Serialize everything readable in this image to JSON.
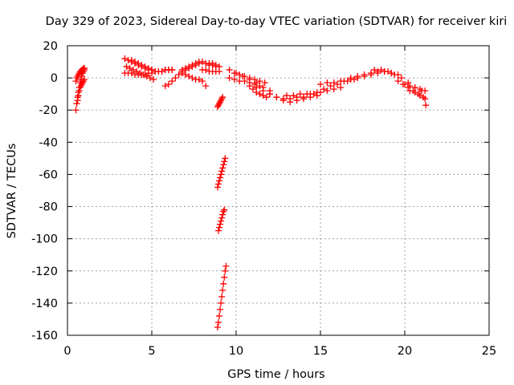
{
  "chart_data": {
    "type": "scatter",
    "title": "Day 329 of 2023, Sidereal Day-to-day VTEC variation (SDTVAR) for receiver kiri",
    "xlabel": "GPS time / hours",
    "ylabel": "SDTVAR / TECUs",
    "xlim": [
      0,
      25
    ],
    "ylim": [
      -160,
      20
    ],
    "xticks": [
      "0",
      "5",
      "10",
      "15",
      "20",
      "25"
    ],
    "yticks": [
      "-160",
      "-140",
      "-120",
      "-100",
      "-80",
      "-60",
      "-40",
      "-20",
      "0",
      "20"
    ],
    "grid": true,
    "marker": "+",
    "color": "#ff0000",
    "series": [
      {
        "name": "s1",
        "x": [
          0.5,
          0.55,
          0.6,
          0.65,
          0.7,
          0.75,
          0.8,
          0.85,
          0.9,
          0.95,
          1.0
        ],
        "y": [
          -20,
          -16,
          -12,
          -9,
          -6,
          -3,
          -1,
          1,
          3,
          4,
          5
        ]
      },
      {
        "name": "s2",
        "x": [
          0.5,
          0.55,
          0.6,
          0.65,
          0.7,
          0.75,
          0.8,
          0.85,
          0.9,
          0.95,
          1.0
        ],
        "y": [
          -2,
          0,
          1,
          2,
          3,
          4,
          4,
          5,
          5,
          6,
          6
        ]
      },
      {
        "name": "s3",
        "x": [
          0.6,
          0.65,
          0.7,
          0.75,
          0.8,
          0.85,
          0.9,
          0.95,
          1.0
        ],
        "y": [
          -14,
          -11,
          -8,
          -6,
          -5,
          -4,
          -3,
          -2,
          -1
        ]
      },
      {
        "name": "s4",
        "x": [
          3.4,
          3.6,
          3.8,
          4.0,
          4.2,
          4.4,
          4.6,
          4.8,
          5.0,
          5.2,
          5.4,
          5.6,
          5.8,
          6.0,
          6.2
        ],
        "y": [
          12,
          11,
          10,
          9,
          8,
          7,
          6,
          5,
          5,
          4,
          4,
          4,
          5,
          5,
          5
        ]
      },
      {
        "name": "s5",
        "x": [
          3.4,
          3.6,
          3.8,
          4.0,
          4.2,
          4.4,
          4.6,
          4.8,
          5.0,
          5.2,
          5.4,
          5.6,
          5.8,
          6.0,
          6.2
        ],
        "y": [
          3,
          3,
          3,
          2,
          2,
          2,
          2,
          3,
          3,
          4,
          4,
          4,
          5,
          5,
          5
        ]
      },
      {
        "name": "s6",
        "x": [
          3.5,
          3.7,
          3.9,
          4.1,
          4.3,
          4.5,
          4.7,
          4.9,
          5.1
        ],
        "y": [
          7,
          6,
          5,
          4,
          3,
          2,
          1,
          0,
          -1
        ]
      },
      {
        "name": "s7",
        "x": [
          3.8,
          4.0,
          4.2,
          4.4,
          4.6,
          4.8,
          5.0
        ],
        "y": [
          11,
          10,
          9,
          8,
          7,
          6,
          5
        ]
      },
      {
        "name": "s8",
        "x": [
          5.8,
          6.0,
          6.2,
          6.4,
          6.6,
          6.8,
          7.0,
          7.2,
          7.4,
          7.6,
          7.8
        ],
        "y": [
          -5,
          -4,
          -2,
          0,
          2,
          4,
          5,
          6,
          7,
          8,
          9
        ]
      },
      {
        "name": "s9",
        "x": [
          6.8,
          7.0,
          7.2,
          7.4,
          7.6,
          7.8,
          8.0,
          8.2,
          8.4,
          8.6,
          8.8,
          9.0
        ],
        "y": [
          5,
          6,
          7,
          8,
          9,
          10,
          10,
          9,
          8,
          8,
          7,
          7
        ]
      },
      {
        "name": "s10",
        "x": [
          6.8,
          7.0,
          7.2,
          7.4,
          7.6,
          7.8,
          8.0
        ],
        "y": [
          3,
          2,
          1,
          0,
          -1,
          -1,
          -2
        ]
      },
      {
        "name": "s11",
        "x": [
          8.0,
          8.2,
          8.4,
          8.6,
          8.8,
          9.0
        ],
        "y": [
          5,
          5,
          4,
          4,
          4,
          4
        ]
      },
      {
        "name": "s12",
        "x": [
          8.4,
          8.6,
          8.8
        ],
        "y": [
          9,
          9,
          8
        ]
      },
      {
        "name": "s13",
        "x": [
          8.2
        ],
        "y": [
          -5
        ]
      },
      {
        "name": "s14",
        "x": [
          8.9,
          8.95,
          9.0,
          9.05,
          9.1,
          9.15,
          9.2
        ],
        "y": [
          -18,
          -17,
          -16,
          -15,
          -14,
          -13,
          -12
        ]
      },
      {
        "name": "s15",
        "x": [
          8.9,
          8.95,
          9.0,
          9.05,
          9.1,
          9.15,
          9.2,
          9.25,
          9.3,
          9.35
        ],
        "y": [
          -68,
          -66,
          -64,
          -62,
          -60,
          -58,
          -56,
          -54,
          -52,
          -50
        ]
      },
      {
        "name": "s16",
        "x": [
          8.95,
          9.0,
          9.05,
          9.1,
          9.15,
          9.2,
          9.25,
          9.3
        ],
        "y": [
          -95,
          -93,
          -91,
          -89,
          -87,
          -85,
          -83,
          -82
        ]
      },
      {
        "name": "s17",
        "x": [
          8.9,
          8.95,
          9.0,
          9.05,
          9.1,
          9.15,
          9.2,
          9.25,
          9.3,
          9.35,
          9.4
        ],
        "y": [
          -155,
          -152,
          -148,
          -144,
          -140,
          -136,
          -132,
          -128,
          -124,
          -120,
          -117
        ]
      },
      {
        "name": "s18",
        "x": [
          9.6,
          9.9,
          10.2,
          10.5,
          10.8,
          11.1,
          11.4,
          11.7
        ],
        "y": [
          5,
          3,
          2,
          1,
          0,
          -1,
          -2,
          -3
        ]
      },
      {
        "name": "s19",
        "x": [
          9.6,
          9.9,
          10.2,
          10.5,
          10.8,
          11.1,
          11.4
        ],
        "y": [
          0,
          -1,
          -2,
          -2,
          -3,
          -4,
          -5
        ]
      },
      {
        "name": "s20",
        "x": [
          10.0,
          10.4,
          10.8,
          11.2,
          11.6,
          12.0
        ],
        "y": [
          3,
          1,
          -1,
          -3,
          -6,
          -8
        ]
      },
      {
        "name": "s21",
        "x": [
          10.8,
          11.0,
          11.2,
          11.4,
          11.6,
          11.8
        ],
        "y": [
          -5,
          -7,
          -9,
          -10,
          -11,
          -12
        ]
      },
      {
        "name": "s22",
        "x": [
          11.2,
          11.6,
          12.0,
          12.4,
          12.8,
          13.2,
          13.6,
          14.0
        ],
        "y": [
          -6,
          -8,
          -10,
          -12,
          -13,
          -13,
          -12,
          -12
        ]
      },
      {
        "name": "s23",
        "x": [
          12.0,
          12.4,
          12.8,
          13.2,
          13.6,
          14.0,
          14.4,
          14.8
        ],
        "y": [
          -10,
          -12,
          -14,
          -15,
          -14,
          -13,
          -12,
          -11
        ]
      },
      {
        "name": "s24",
        "x": [
          13.0,
          13.4,
          13.8,
          14.2,
          14.6,
          15.0,
          15.4,
          15.8,
          16.2
        ],
        "y": [
          -11,
          -11,
          -10,
          -10,
          -10,
          -9,
          -8,
          -7,
          -6
        ]
      },
      {
        "name": "s25",
        "x": [
          14.4,
          14.8,
          15.2,
          15.6,
          16.0,
          16.4,
          16.8,
          17.2
        ],
        "y": [
          -10,
          -9,
          -7,
          -5,
          -4,
          -2,
          -1,
          0
        ]
      },
      {
        "name": "s26",
        "x": [
          15.0,
          15.4,
          15.8,
          16.2,
          16.6,
          17.0
        ],
        "y": [
          -4,
          -3,
          -3,
          -2,
          -2,
          -1
        ]
      },
      {
        "name": "s27",
        "x": [
          16.8,
          17.2,
          17.6,
          18.0,
          18.4,
          18.8,
          19.2,
          19.6
        ],
        "y": [
          0,
          1,
          2,
          3,
          4,
          4,
          3,
          2
        ]
      },
      {
        "name": "s28",
        "x": [
          17.6,
          18.0,
          18.4,
          18.8,
          19.2
        ],
        "y": [
          1,
          2,
          3,
          4,
          3
        ]
      },
      {
        "name": "s29",
        "x": [
          18.2,
          18.6,
          19.0,
          19.4,
          19.8,
          20.2,
          20.6,
          21.0
        ],
        "y": [
          5,
          5,
          4,
          2,
          0,
          -3,
          -6,
          -8
        ]
      },
      {
        "name": "s30",
        "x": [
          19.6,
          19.9,
          20.2,
          20.5,
          20.8,
          21.1,
          21.25
        ],
        "y": [
          -2,
          -4,
          -6,
          -8,
          -10,
          -12,
          -17
        ]
      },
      {
        "name": "s31",
        "x": [
          20.0,
          20.3,
          20.6,
          20.9,
          21.2
        ],
        "y": [
          -4,
          -5,
          -6,
          -7,
          -8
        ]
      },
      {
        "name": "s32",
        "x": [
          20.3,
          20.6,
          20.9,
          21.2
        ],
        "y": [
          -8,
          -9,
          -11,
          -13
        ]
      }
    ]
  }
}
